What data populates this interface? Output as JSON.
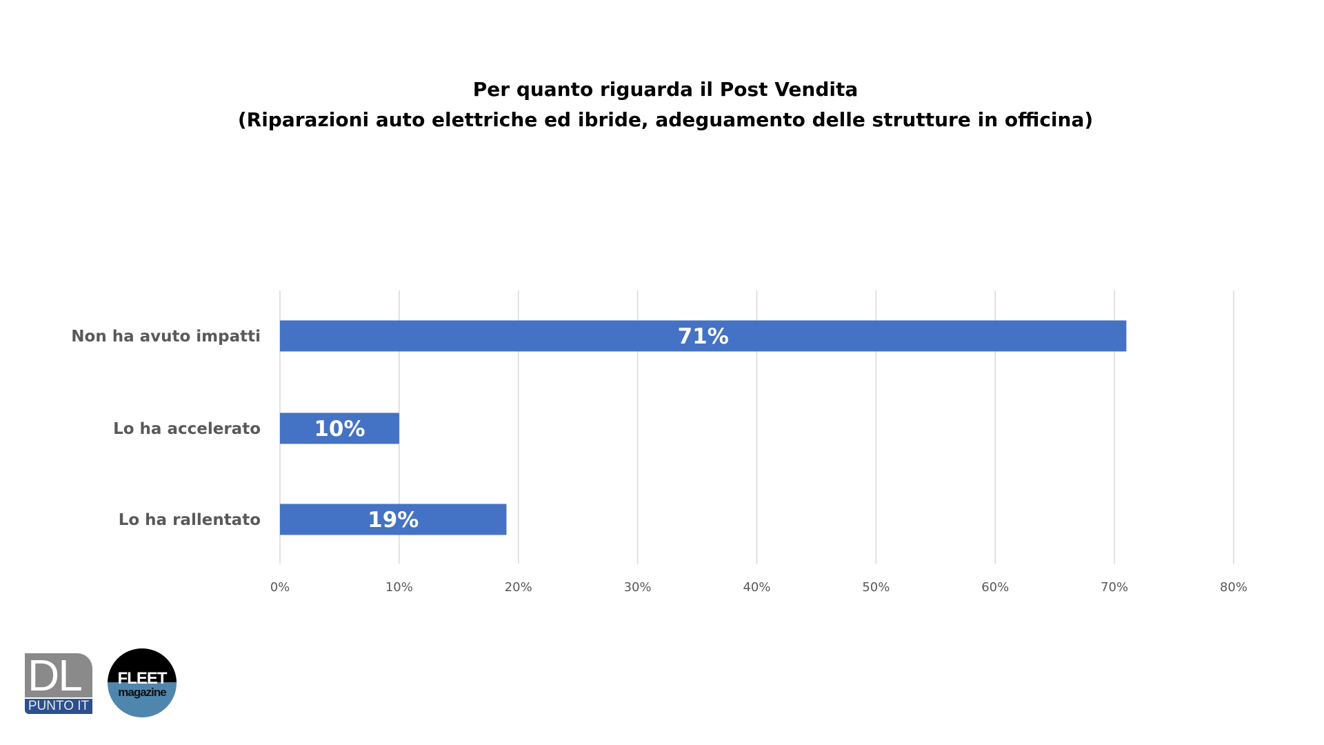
{
  "chart_data": {
    "type": "bar",
    "orientation": "horizontal",
    "title": [
      "Per quanto riguarda il Post Vendita",
      "(Riparazioni auto elettriche ed ibride, adeguamento delle strutture in officina)"
    ],
    "categories": [
      "Non ha avuto impatti",
      "Lo ha accelerato",
      "Lo ha rallentato"
    ],
    "values": [
      71,
      10,
      19
    ],
    "data_labels": [
      "71%",
      "10%",
      "19%"
    ],
    "xlim": [
      0,
      80
    ],
    "xticks": [
      0,
      10,
      20,
      30,
      40,
      50,
      60,
      70,
      80
    ],
    "xtick_labels": [
      "0%",
      "10%",
      "20%",
      "30%",
      "40%",
      "50%",
      "60%",
      "70%",
      "80%"
    ],
    "xlabel": "",
    "ylabel": "",
    "grid": "vertical",
    "bar_color": "#4472c4"
  },
  "logos": {
    "dl": {
      "top": "DL",
      "bottom": "PUNTO IT"
    },
    "fleet": {
      "top": "FLEET",
      "bottom": "magazine"
    }
  }
}
